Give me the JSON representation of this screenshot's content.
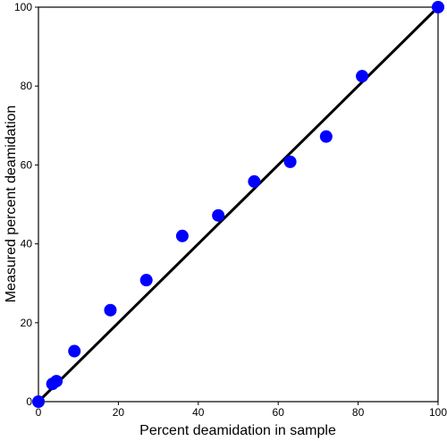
{
  "chart_data": {
    "type": "scatter",
    "title": "",
    "xlabel": "Percent deamidation in sample",
    "ylabel": "Measured percent deamidation",
    "xlim": [
      0,
      100
    ],
    "ylim": [
      0,
      100
    ],
    "xticks": [
      0,
      20,
      40,
      60,
      80,
      100
    ],
    "yticks": [
      0,
      20,
      40,
      60,
      80,
      100
    ],
    "grid": false,
    "series": [
      {
        "marker_color": "#0000ff",
        "points": [
          {
            "x": 0,
            "y": 0
          },
          {
            "x": 3.5,
            "y": 4.5
          },
          {
            "x": 4.5,
            "y": 5.2
          },
          {
            "x": 9,
            "y": 12.8
          },
          {
            "x": 18,
            "y": 23.2
          },
          {
            "x": 27,
            "y": 30.8
          },
          {
            "x": 36,
            "y": 42
          },
          {
            "x": 45,
            "y": 47.2
          },
          {
            "x": 54,
            "y": 55.8
          },
          {
            "x": 63,
            "y": 60.8
          },
          {
            "x": 72,
            "y": 67.2
          },
          {
            "x": 81,
            "y": 82.5
          },
          {
            "x": 100,
            "y": 100
          }
        ]
      }
    ],
    "reference_line": {
      "from": [
        0,
        0
      ],
      "to": [
        100,
        100
      ],
      "color": "#000000"
    }
  }
}
